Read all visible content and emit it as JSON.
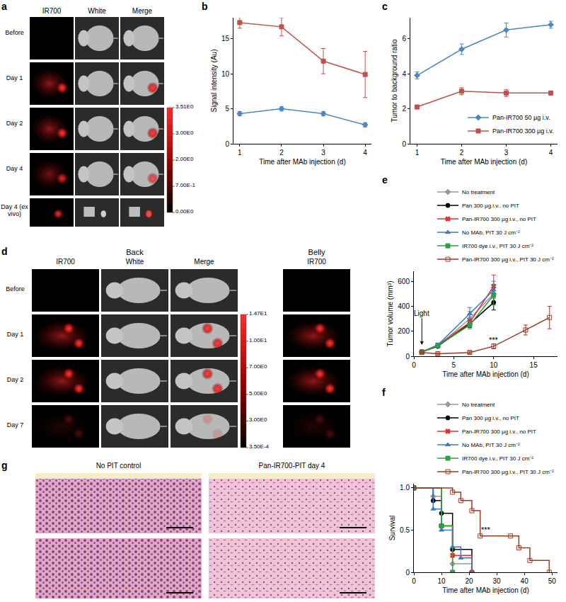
{
  "chart_data": [
    {
      "panel": "b",
      "type": "line",
      "xlabel": "Time after MAb injection (d)",
      "ylabel": "Signal intensity (Au)",
      "x": [
        1,
        2,
        3,
        4
      ],
      "series": [
        {
          "name": "Pan-IR700 50 µg i.v.",
          "color": "#4a86c8",
          "marker": "diamond",
          "values": [
            4.3,
            5.0,
            4.3,
            2.7
          ],
          "error": [
            0.3,
            0.3,
            0.3,
            0.3
          ]
        },
        {
          "name": "Pan-IR700 300 µg i.v.",
          "color": "#c0504d",
          "marker": "square",
          "values": [
            17.3,
            16.7,
            11.8,
            9.9
          ],
          "error": [
            0.8,
            1.3,
            1.8,
            3.3
          ]
        }
      ],
      "xlim": [
        0.85,
        4.15
      ],
      "xticks": [
        1,
        2,
        3,
        4
      ],
      "ylim": [
        0,
        18
      ],
      "yticks": [
        0,
        5,
        10,
        15
      ],
      "grid": false
    },
    {
      "panel": "c",
      "type": "line",
      "xlabel": "Time after MAb injection (d)",
      "ylabel": "Tumor to background ratio",
      "x": [
        1,
        2,
        3,
        4
      ],
      "series": [
        {
          "name": "Pan-IR700 50 µg i.v.",
          "color": "#4a86c8",
          "marker": "diamond",
          "values": [
            3.9,
            5.4,
            6.5,
            6.8
          ],
          "error": [
            0.2,
            0.3,
            0.4,
            0.2
          ]
        },
        {
          "name": "Pan-IR700 300 µg i.v.",
          "color": "#c0504d",
          "marker": "square",
          "values": [
            2.1,
            3.0,
            2.9,
            2.9
          ],
          "error": [
            0.1,
            0.2,
            0.2,
            0.1
          ]
        }
      ],
      "xlim": [
        0.85,
        4.15
      ],
      "xticks": [
        1,
        2,
        3,
        4
      ],
      "ylim": [
        0,
        7.2
      ],
      "yticks": [
        0,
        2,
        4,
        6
      ],
      "grid": false,
      "legend": "lower right"
    },
    {
      "panel": "e",
      "type": "line",
      "xlabel": "Time after MAb injection (d)",
      "ylabel": "Tumor volume (mm³)",
      "series": [
        {
          "name": "No treatment",
          "color": "#999999",
          "marker": "diamond",
          "x": [
            1,
            3,
            7,
            10
          ],
          "values": [
            35,
            80,
            300,
            500
          ],
          "error": [
            5,
            15,
            60,
            70
          ]
        },
        {
          "name": "Pan 300 µg i.v., no PIT",
          "color": "#000000",
          "marker": "circle",
          "x": [
            1,
            3,
            7,
            10
          ],
          "values": [
            35,
            80,
            260,
            430
          ],
          "error": [
            5,
            10,
            30,
            60
          ]
        },
        {
          "name": "Pan-IR700 300 µg i.v., no PIT",
          "color": "#e03030",
          "marker": "x",
          "x": [
            1,
            3,
            7,
            10
          ],
          "values": [
            35,
            90,
            270,
            560
          ],
          "error": [
            5,
            10,
            30,
            90
          ]
        },
        {
          "name": "No MAb, PIT 30 J cm⁻²",
          "color": "#3a78c9",
          "marker": "triangle-up",
          "x": [
            1,
            3,
            7,
            10
          ],
          "values": [
            35,
            90,
            340,
            530
          ],
          "error": [
            5,
            15,
            50,
            70
          ]
        },
        {
          "name": "IR700 dye i.v., PIT 30 J cm⁻²",
          "color": "#2e9e44",
          "marker": "square",
          "x": [
            1,
            3,
            7,
            10
          ],
          "values": [
            35,
            85,
            250,
            490
          ],
          "error": [
            5,
            10,
            30,
            80
          ]
        },
        {
          "name": "Pan-IR700 300 µg i.v., PIT 30 J cm⁻²",
          "color": "#9c3a24",
          "marker": "square-open",
          "x": [
            1,
            3,
            7,
            10,
            14,
            17
          ],
          "values": [
            30,
            20,
            30,
            80,
            210,
            310
          ],
          "error": [
            5,
            8,
            10,
            20,
            40,
            90
          ]
        }
      ],
      "xlim": [
        0,
        18
      ],
      "xticks": [
        0,
        5,
        10,
        15
      ],
      "ylim": [
        0,
        680
      ],
      "yticks": [
        0,
        200,
        400,
        600
      ],
      "grid": false,
      "legend": "upper right",
      "annotations": [
        {
          "text": "Light",
          "x": 1,
          "y": 90,
          "marker": "arrow"
        },
        {
          "text": "***",
          "x": 10,
          "y": 130
        }
      ]
    },
    {
      "panel": "f",
      "type": "line",
      "line_style": "step",
      "xlabel": "Time after MAb injection (d)",
      "ylabel": "Survival",
      "series": [
        {
          "name": "No treatment",
          "color": "#999999",
          "marker": "diamond",
          "x": [
            0,
            7,
            10,
            14,
            21
          ],
          "values": [
            1,
            0.9,
            0.55,
            0.1,
            0
          ]
        },
        {
          "name": "Pan 300 µg i.v., no PIT",
          "color": "#000000",
          "marker": "circle",
          "x": [
            0,
            7,
            10,
            14,
            21
          ],
          "values": [
            1,
            0.85,
            0.7,
            0.27,
            0
          ]
        },
        {
          "name": "Pan-IR700 300 µg i.v., no PIT",
          "color": "#e03030",
          "marker": "x",
          "x": [
            0,
            10,
            14,
            21
          ],
          "values": [
            1,
            0.55,
            0.2,
            0
          ]
        },
        {
          "name": "No MAb, PIT 30 J cm⁻²",
          "color": "#3a78c9",
          "marker": "triangle-up",
          "x": [
            0,
            7,
            10,
            14,
            17,
            21
          ],
          "values": [
            1,
            0.75,
            0.5,
            0.3,
            0.17,
            0
          ]
        },
        {
          "name": "IR700 dye i.v., PIT 30 J cm⁻²",
          "color": "#2e9e44",
          "marker": "square",
          "x": [
            0,
            10,
            14
          ],
          "values": [
            1,
            0.55,
            0
          ]
        },
        {
          "name": "Pan-IR700 300 µg i.v., PIT 30 J cm⁻²",
          "color": "#9c3a24",
          "marker": "square-open",
          "x": [
            0,
            14,
            17,
            21,
            24,
            35,
            38,
            42,
            49
          ],
          "values": [
            1,
            0.95,
            0.85,
            0.73,
            0.43,
            0.43,
            0.29,
            0.14,
            0
          ]
        }
      ],
      "xlim": [
        0,
        52
      ],
      "xticks": [
        0,
        10,
        20,
        30,
        40,
        50
      ],
      "ylim": [
        0,
        1.05
      ],
      "yticks": [
        0,
        0.5,
        {
          "value": 1,
          "label": "1.0"
        }
      ],
      "grid": false,
      "legend": "upper right",
      "annotations": [
        {
          "text": "***",
          "x": 26,
          "y": 0.5
        }
      ]
    }
  ],
  "image_panels": [
    {
      "panel": "a",
      "columns": [
        "IR700",
        "White",
        "Merge"
      ],
      "rows": [
        "Before",
        "Day 1",
        "Day 2",
        "Day 4",
        "Day 4 (ex vivo)"
      ],
      "colorbar_labels": [
        "3.51E0",
        "3.00E0",
        "2.00E0",
        "7.00E-1",
        "0.00E0"
      ]
    },
    {
      "panel": "d",
      "groups": [
        {
          "label": "Back",
          "columns": [
            "IR700",
            "White",
            "Merge"
          ]
        },
        {
          "label": "Belly",
          "columns": [
            "IR700"
          ]
        }
      ],
      "rows": [
        "Before",
        "Day 1",
        "Day 2",
        "Day 7"
      ],
      "colorbar_labels": [
        "1.47E1",
        "1.00E1",
        "7.00E0",
        "5.00E0",
        "3.00E0",
        "3.50E-4"
      ]
    },
    {
      "panel": "g",
      "columns": [
        "No PIT control",
        "Pan-IR700-PIT day 4"
      ]
    }
  ]
}
